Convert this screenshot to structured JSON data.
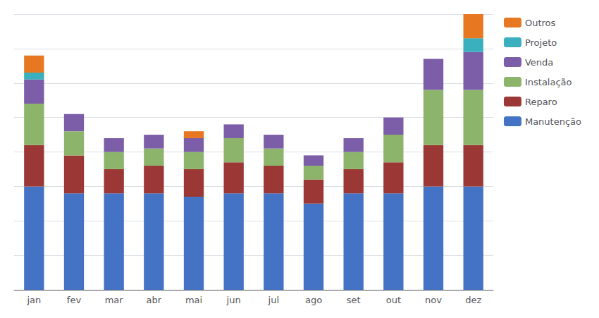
{
  "chart_data": {
    "type": "bar",
    "stacked": true,
    "categories": [
      "jan",
      "fev",
      "mar",
      "abr",
      "mai",
      "jun",
      "jul",
      "ago",
      "set",
      "out",
      "nov",
      "dez"
    ],
    "series": [
      {
        "name": "Manutenção",
        "color": "#4472C4",
        "values": [
          30,
          28,
          28,
          28,
          27,
          28,
          28,
          25,
          28,
          28,
          30,
          30
        ]
      },
      {
        "name": "Reparo",
        "color": "#9B3735",
        "values": [
          12,
          11,
          7,
          8,
          8,
          9,
          8,
          7,
          7,
          9,
          12,
          12
        ]
      },
      {
        "name": "Instalação",
        "color": "#8DB46B",
        "values": [
          12,
          7,
          5,
          5,
          5,
          7,
          5,
          4,
          5,
          8,
          16,
          16
        ]
      },
      {
        "name": "Venda",
        "color": "#7B5EA7",
        "values": [
          7,
          5,
          4,
          4,
          4,
          4,
          4,
          3,
          4,
          5,
          9,
          11
        ]
      },
      {
        "name": "Projeto",
        "color": "#3AAFBE",
        "values": [
          2,
          0,
          0,
          0,
          0,
          0,
          0,
          0,
          0,
          0,
          0,
          4
        ]
      },
      {
        "name": "Outros",
        "color": "#E87722",
        "values": [
          5,
          0,
          0,
          0,
          2,
          0,
          0,
          0,
          0,
          0,
          0,
          7
        ]
      }
    ],
    "ylim": [
      0,
      80
    ],
    "yticks": [
      0,
      10,
      20,
      30,
      40,
      50,
      60,
      70,
      80
    ],
    "grid": true,
    "legend": "right",
    "tick_labels": "x"
  }
}
